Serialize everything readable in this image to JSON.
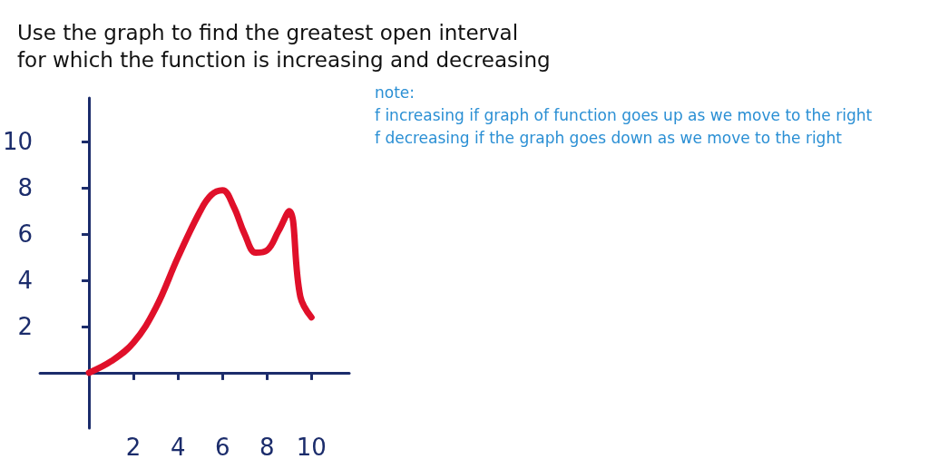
{
  "chart_data": {
    "type": "line",
    "title": "Use the graph to find the greatest open interval\nfor which the function is increasing and decreasing",
    "x": [
      0,
      1,
      2,
      3,
      4,
      5,
      5.5,
      6,
      6.5,
      7,
      7.5,
      8,
      8.5,
      9,
      9.5,
      10
    ],
    "series": [
      {
        "color": "#e0102a",
        "values": [
          0,
          0.5,
          1.3,
          2.8,
          5,
          7,
          7.7,
          7.9,
          7.2,
          6,
          5.2,
          5.3,
          6.1,
          7,
          3.3,
          2.4
        ]
      }
    ],
    "xlim": [
      -2.2,
      11.7
    ],
    "ylim": [
      -2.4,
      11.9
    ],
    "xticks": [
      2,
      4,
      6,
      8,
      10
    ],
    "yticks": [
      2,
      4,
      6,
      8,
      10
    ],
    "grid": false,
    "marker": "none",
    "line_style": "solid",
    "annotations": [
      "note:",
      "f increasing if graph of function goes up as we move to the right",
      "f decreasing if the graph goes down as we move to the right"
    ]
  }
}
